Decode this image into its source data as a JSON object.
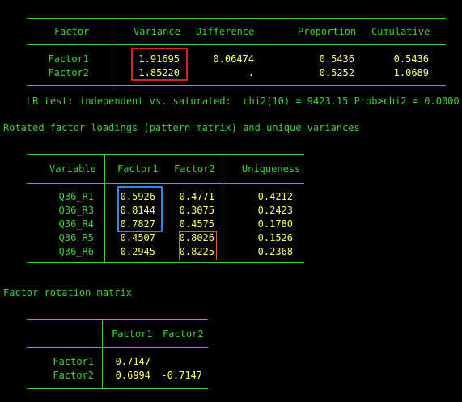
{
  "table1": {
    "headers": {
      "factor": "Factor",
      "variance": "Variance",
      "difference": "Difference",
      "proportion": "Proportion",
      "cumulative": "Cumulative"
    },
    "rows": [
      {
        "factor": "Factor1",
        "variance": "1.91695",
        "difference": "0.06474",
        "proportion": "0.5436",
        "cumulative": "0.5436"
      },
      {
        "factor": "Factor2",
        "variance": "1.85220",
        "difference": ".",
        "proportion": "0.5252",
        "cumulative": "1.0689"
      }
    ],
    "lr_test": "LR test: independent vs. saturated:  chi2(10) = 9423.15 Prob>chi2 = 0.0000"
  },
  "section2_title": "Rotated factor loadings (pattern matrix) and unique variances",
  "table2": {
    "headers": {
      "variable": "Variable",
      "factor1": "Factor1",
      "factor2": "Factor2",
      "uniqueness": "Uniqueness"
    },
    "rows": [
      {
        "variable": "Q36_R1",
        "factor1": "0.5926",
        "factor2": "0.4771",
        "uniqueness": "0.4212"
      },
      {
        "variable": "Q36_R3",
        "factor1": "0.8144",
        "factor2": "0.3075",
        "uniqueness": "0.2423"
      },
      {
        "variable": "Q36_R4",
        "factor1": "0.7827",
        "factor2": "0.4575",
        "uniqueness": "0.1780"
      },
      {
        "variable": "Q36_R5",
        "factor1": "0.4507",
        "factor2": "0.8026",
        "uniqueness": "0.1526"
      },
      {
        "variable": "Q36_R6",
        "factor1": "0.2945",
        "factor2": "0.8225",
        "uniqueness": "0.2368"
      }
    ]
  },
  "section3_title": "Factor rotation matrix",
  "table3": {
    "headers": {
      "factor1": "Factor1",
      "factor2": "Factor2"
    },
    "rows": [
      {
        "label": "Factor1",
        "factor1": "0.7147",
        "factor2": ""
      },
      {
        "label": "Factor2",
        "factor1": "0.6994",
        "factor2": "-0.7147"
      }
    ]
  },
  "colors": {
    "text": "#3ccf3c",
    "value": "#ffff66",
    "red_box": "#e02020",
    "blue_box": "#2a8ae0",
    "orange_box": "#e06010"
  }
}
